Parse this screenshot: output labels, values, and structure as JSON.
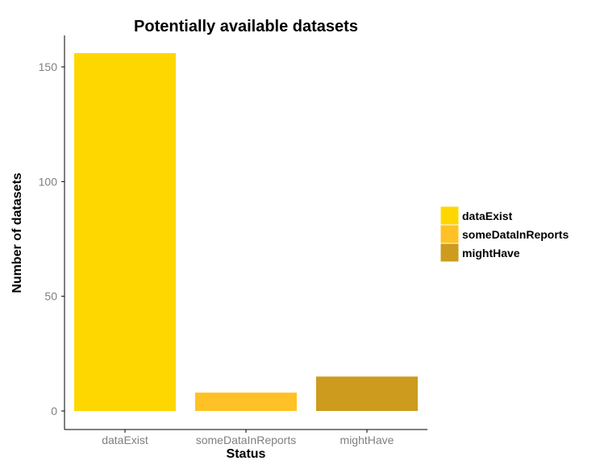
{
  "chart_data": {
    "type": "bar",
    "title": "Potentially available datasets",
    "xlabel": "Status",
    "ylabel": "Number of datasets",
    "categories": [
      "dataExist",
      "someDataInReports",
      "mightHave"
    ],
    "values": [
      156,
      8,
      15
    ],
    "colors": [
      "#FFD700",
      "#FFC125",
      "#CD9B1D"
    ],
    "ylim": [
      0,
      163
    ],
    "yticks": [
      0,
      50,
      100,
      150
    ],
    "grid": false,
    "legend": {
      "placement": "right",
      "entries": [
        "dataExist",
        "someDataInReports",
        "mightHave"
      ]
    }
  }
}
